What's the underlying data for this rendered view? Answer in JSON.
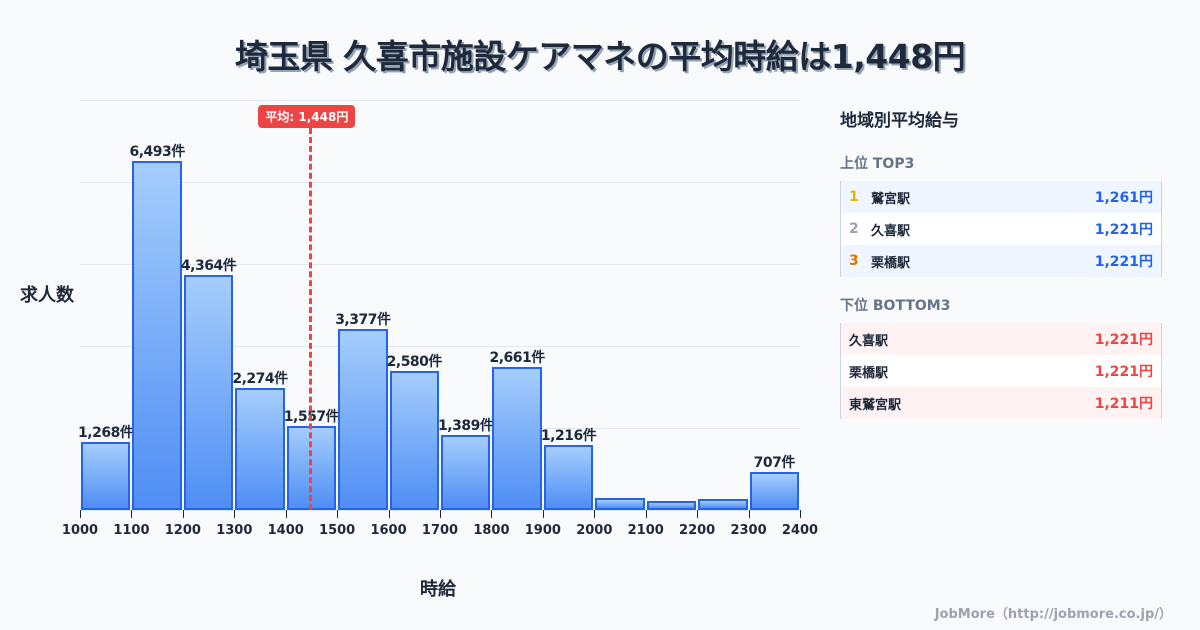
{
  "title": "埼玉県 久喜市施設ケアマネの平均時給は1,448円",
  "chart_data": {
    "type": "bar",
    "title": "埼玉県 久喜市施設ケアマネの平均時給は1,448円",
    "xlabel": "時給",
    "ylabel": "求人数",
    "categories": [
      "1000",
      "1100",
      "1200",
      "1300",
      "1400",
      "1500",
      "1600",
      "1700",
      "1800",
      "1900",
      "2000",
      "2100",
      "2200",
      "2300"
    ],
    "x_ticks": [
      "1000",
      "1100",
      "1200",
      "1300",
      "1400",
      "1500",
      "1600",
      "1700",
      "1800",
      "1900",
      "2000",
      "2100",
      "2200",
      "2300",
      "2400"
    ],
    "values": [
      1268,
      6493,
      4364,
      2274,
      1557,
      3377,
      2580,
      1389,
      2661,
      1216,
      220,
      170,
      200,
      707
    ],
    "labels": [
      "1,268件",
      "6,493件",
      "4,364件",
      "2,274件",
      "1,557件",
      "3,377件",
      "2,580件",
      "1,389件",
      "2,661件",
      "1,216件",
      "",
      "",
      "",
      "707件"
    ],
    "average": {
      "value": 1448,
      "label": "平均: 1,448円"
    },
    "ylim": [
      0,
      7630
    ],
    "grid": true,
    "legend": "none"
  },
  "panel": {
    "title": "地域別平均給与",
    "top": {
      "heading": "上位 TOP3",
      "items": [
        {
          "rank": "1",
          "name": "鷲宮駅",
          "value": "1,261円",
          "rank_color": "#eab308"
        },
        {
          "rank": "2",
          "name": "久喜駅",
          "value": "1,221円",
          "rank_color": "#9ca3af"
        },
        {
          "rank": "3",
          "name": "栗橋駅",
          "value": "1,221円",
          "rank_color": "#d97706"
        }
      ]
    },
    "bottom": {
      "heading": "下位 BOTTOM3",
      "items": [
        {
          "name": "久喜駅",
          "value": "1,221円"
        },
        {
          "name": "栗橋駅",
          "value": "1,221円"
        },
        {
          "name": "東鷲宮駅",
          "value": "1,211円"
        }
      ]
    }
  },
  "footer": "JobMore（http://jobmore.co.jp/）",
  "colors": {
    "bar": "#2563eb",
    "average": "#ef4444",
    "top_value": "#2563eb",
    "bottom_value": "#ef4444"
  }
}
